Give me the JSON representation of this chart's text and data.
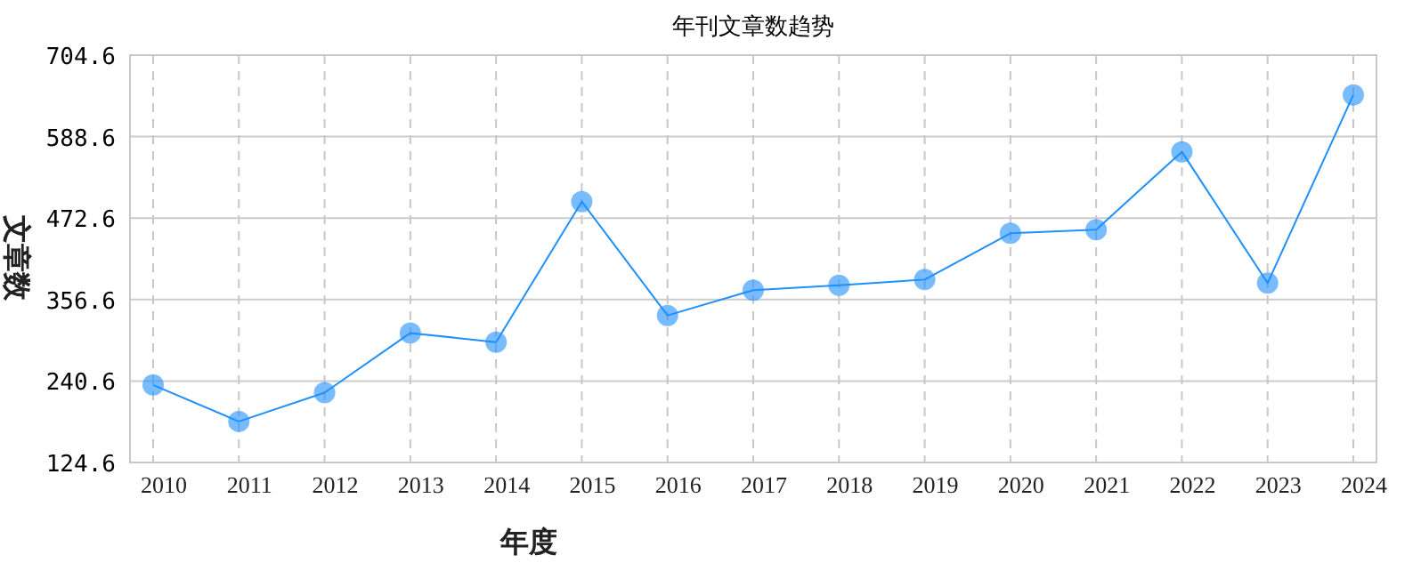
{
  "chart_data": {
    "type": "line",
    "title": "年刊文章数趋势",
    "xlabel": "年度",
    "ylabel": "文章数",
    "categories": [
      "2010",
      "2011",
      "2012",
      "2013",
      "2014",
      "2015",
      "2016",
      "2017",
      "2018",
      "2019",
      "2020",
      "2021",
      "2022",
      "2023",
      "2024"
    ],
    "series": [
      {
        "color": "#1e90ff",
        "values": [
          235,
          183,
          224,
          309,
          296,
          496,
          334,
          370,
          377,
          385,
          451,
          456,
          567,
          380,
          648
        ]
      }
    ],
    "ylim": [
      124.6,
      704.6
    ],
    "yticks": [
      124.6,
      240.6,
      356.6,
      472.6,
      588.6,
      704.6
    ],
    "grid": true,
    "marker": "circle",
    "line_style": "solid"
  }
}
